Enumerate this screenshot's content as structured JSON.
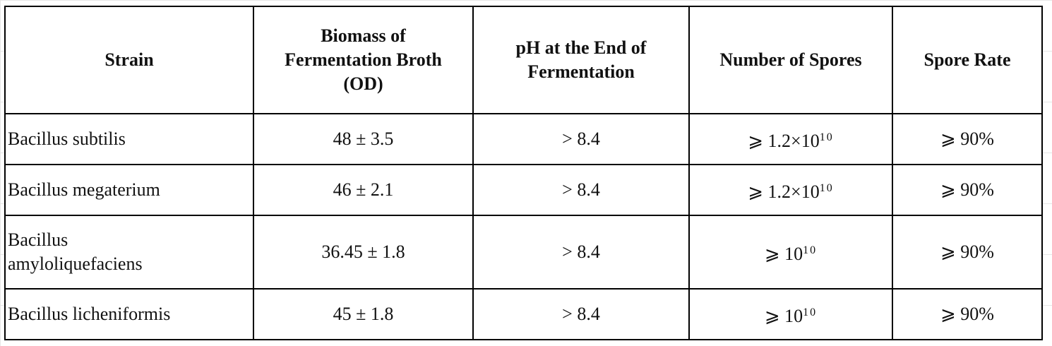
{
  "table": {
    "headers": [
      "Strain",
      "Biomass of Fermentation Broth (OD)",
      "pH at the End of Fermentation",
      "Number of Spores",
      "Spore Rate"
    ],
    "rows": [
      {
        "strain": "Bacillus subtilis",
        "biomass": "48 ± 3.5",
        "ph": "> 8.4",
        "spores_base": "⩾ 1.2×10",
        "spores_exp": "10",
        "rate": "⩾ 90%"
      },
      {
        "strain": "Bacillus megaterium",
        "biomass": "46 ± 2.1",
        "ph": "> 8.4",
        "spores_base": "⩾ 1.2×10",
        "spores_exp": "10",
        "rate": "⩾ 90%"
      },
      {
        "strain": "Bacillus amyloliquefaciens",
        "biomass": "36.45 ± 1.8",
        "ph": "> 8.4",
        "spores_base": "⩾ 10",
        "spores_exp": "10",
        "rate": "⩾ 90%"
      },
      {
        "strain": "Bacillus licheniformis",
        "biomass": "45 ± 1.8",
        "ph": "> 8.4",
        "spores_base": "⩾ 10",
        "spores_exp": "10",
        "rate": "⩾ 90%"
      }
    ]
  }
}
